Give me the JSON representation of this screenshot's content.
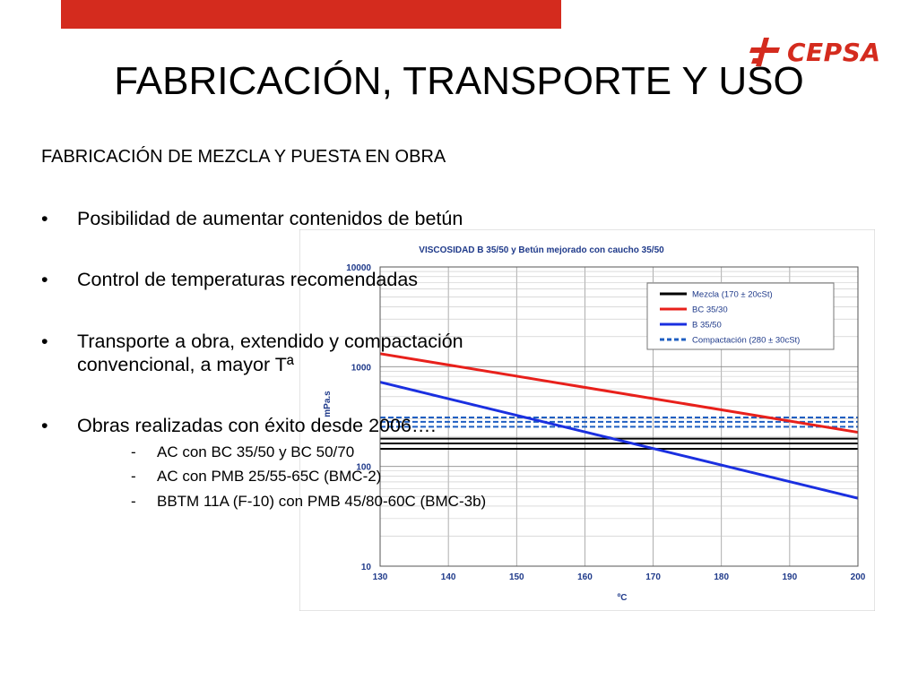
{
  "slide": {
    "brand": "CEPSA",
    "title": "FABRICACIÓN, TRANSPORTE Y USO",
    "subheading": "FABRICACIÓN DE MEZCLA Y PUESTA EN OBRA",
    "bullets": [
      "Posibilidad de aumentar contenidos de betún",
      "Control de temperaturas recomendadas",
      "Transporte a obra, extendido y compactación",
      "convencional, a mayor Tª",
      "Obras realizadas con éxito desde 2006…."
    ],
    "bullet_glyph": "•",
    "sub_bullets": [
      "AC con BC 35/50 y BC 50/70",
      "AC con PMB 25/55-65C (BMC-2)",
      "BBTM 11A (F-10) con PMB 45/80-60C (BMC-3b)"
    ],
    "sub_glyph": "-",
    "colors": {
      "accent": "#d42b1e"
    }
  },
  "chart_data": {
    "type": "line",
    "title": "VISCOSIDAD  B 35/50 y Betún mejorado con caucho 35/50",
    "xlabel": "ºC",
    "ylabel": "mPa.s",
    "y_scale": "log",
    "xlim": [
      130,
      200
    ],
    "ylim": [
      10,
      10000
    ],
    "x_ticks": [
      "130",
      "140",
      "150",
      "160",
      "170",
      "180",
      "190",
      "200"
    ],
    "y_ticks": [
      "10",
      "100",
      "1000",
      "10000"
    ],
    "grid": true,
    "legend_position": "top-right",
    "series": [
      {
        "name": "Mezcla (170 ± 20cSt)",
        "color": "#000000",
        "style": "solid-band",
        "values": [
          150,
          170,
          190
        ]
      },
      {
        "name": "BC 35/30",
        "color": "#e8201b",
        "style": "solid",
        "x": [
          130,
          200
        ],
        "y": [
          1350,
          220
        ]
      },
      {
        "name": "B 35/50",
        "color": "#1a2fe0",
        "style": "solid",
        "x": [
          130,
          200
        ],
        "y": [
          700,
          48
        ]
      },
      {
        "name": "Compactación (280 ± 30cSt)",
        "color": "#1f5fc2",
        "style": "dashed-band",
        "values": [
          250,
          280,
          310
        ]
      }
    ]
  }
}
